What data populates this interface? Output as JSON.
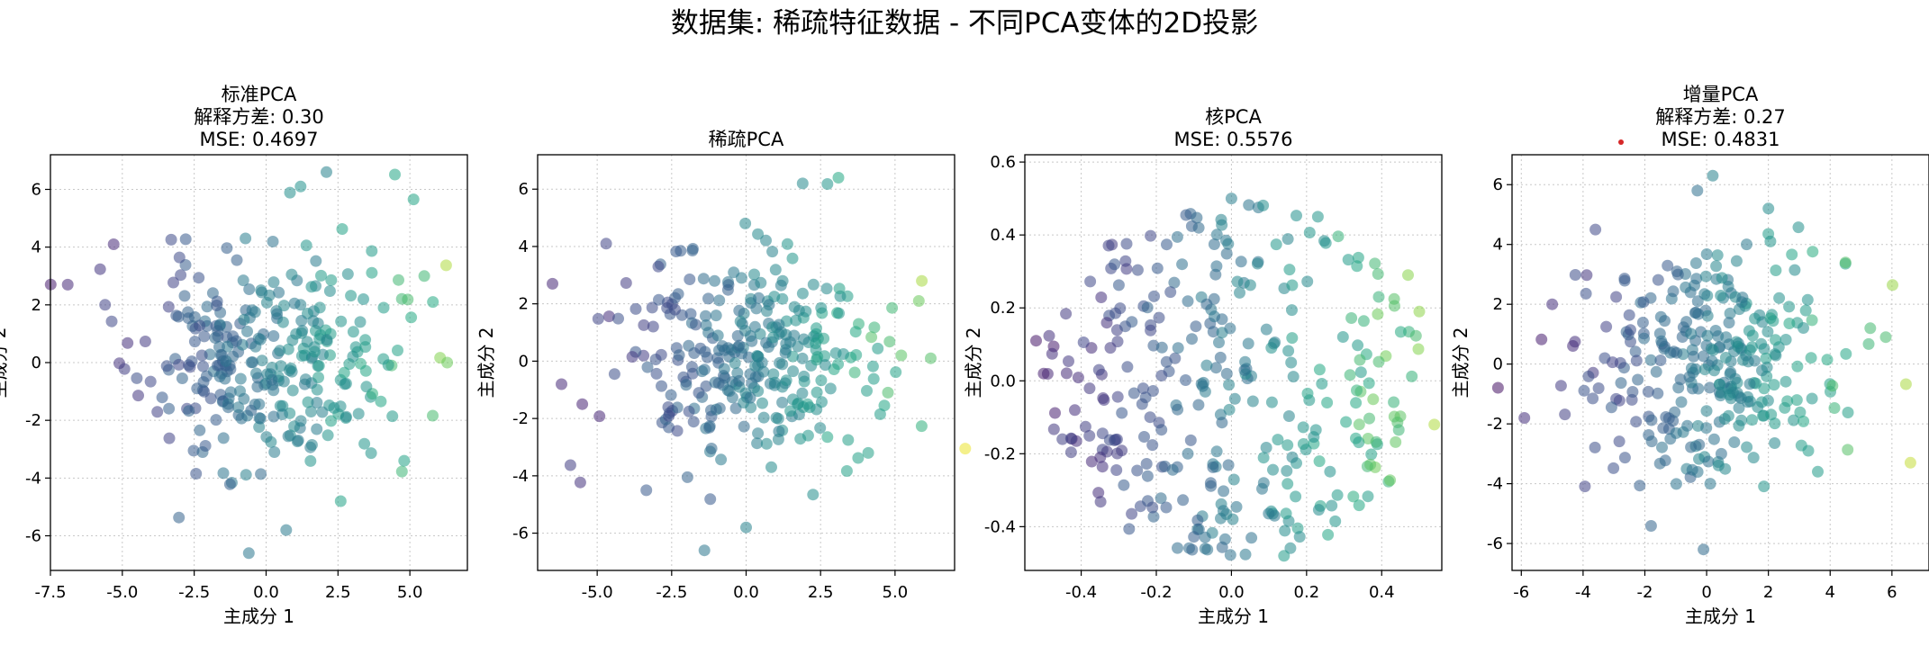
{
  "figure": {
    "suptitle": "数据集: 稀疏特征数据 - 不同PCA变体的2D投影"
  },
  "style": {
    "colormap": "viridis",
    "point_alpha": 0.55,
    "grid": true
  },
  "chart_data": [
    {
      "type": "scatter",
      "title_lines": [
        "标准PCA",
        "解释方差: 0.30",
        "MSE: 0.4697"
      ],
      "xlabel": "主成分 1",
      "ylabel": "主成分 2",
      "xlim": [
        -7.5,
        7.0
      ],
      "ylim": [
        -7.2,
        7.2
      ],
      "xticks": [
        -7.5,
        -5.0,
        -2.5,
        0.0,
        2.5,
        5.0
      ],
      "xtick_labels": [
        "-7.5",
        "-5.0",
        "-2.5",
        "0.0",
        "2.5",
        "5.0"
      ],
      "yticks": [
        -6,
        -4,
        -2,
        0,
        2,
        4,
        6
      ],
      "ytick_labels": [
        "-6",
        "-4",
        "-2",
        "0",
        "2",
        "4",
        "6"
      ],
      "n_points": 300,
      "seed": 11,
      "x_std": 2.4,
      "y_std": 2.3,
      "extremes": [
        [
          -6.9,
          2.7
        ],
        [
          -5.6,
          2.0
        ],
        [
          -5.3,
          4.1
        ],
        [
          6.3,
          0.0
        ],
        [
          5.5,
          3.0
        ],
        [
          5.8,
          2.1
        ],
        [
          -0.6,
          -6.6
        ],
        [
          2.1,
          6.6
        ],
        [
          1.2,
          6.1
        ],
        [
          0.7,
          -5.8
        ],
        [
          4.8,
          -3.4
        ]
      ]
    },
    {
      "type": "scatter",
      "title_lines": [
        "稀疏PCA"
      ],
      "xlabel": "",
      "ylabel": "主成分 2",
      "xlim": [
        -7.0,
        7.0
      ],
      "ylim": [
        -7.3,
        7.2
      ],
      "xticks": [
        -5.0,
        -2.5,
        0.0,
        2.5,
        5.0
      ],
      "xtick_labels": [
        "-5.0",
        "-2.5",
        "0.0",
        "2.5",
        "5.0"
      ],
      "yticks": [
        -6,
        -4,
        -2,
        0,
        2,
        4,
        6
      ],
      "ytick_labels": [
        "-6",
        "-4",
        "-2",
        "0",
        "2",
        "4",
        "6"
      ],
      "n_points": 300,
      "seed": 23,
      "x_std": 2.4,
      "y_std": 2.3,
      "extremes": [
        [
          -6.5,
          2.7
        ],
        [
          -4.7,
          4.1
        ],
        [
          -5.5,
          -1.5
        ],
        [
          6.2,
          0.1
        ],
        [
          5.9,
          2.8
        ],
        [
          5.8,
          2.1
        ],
        [
          -1.4,
          -6.6
        ],
        [
          3.1,
          6.4
        ],
        [
          1.9,
          6.2
        ],
        [
          0.0,
          -5.8
        ],
        [
          4.1,
          -3.2
        ]
      ]
    },
    {
      "type": "scatter",
      "title_lines": [
        "核PCA",
        "MSE: 0.5576"
      ],
      "xlabel": "主成分 1",
      "ylabel": "主成分 2",
      "xlim": [
        -0.55,
        0.56
      ],
      "ylim": [
        -0.52,
        0.62
      ],
      "xticks": [
        -0.4,
        -0.2,
        0.0,
        0.2,
        0.4
      ],
      "xtick_labels": [
        "-0.4",
        "-0.2",
        "0.0",
        "0.2",
        "0.4"
      ],
      "yticks": [
        -0.4,
        -0.2,
        0.0,
        0.2,
        0.4,
        0.6
      ],
      "ytick_labels": [
        "-0.4",
        "-0.2",
        "0.0",
        "0.2",
        "0.4",
        "0.6"
      ],
      "n_points": 320,
      "seed": 37,
      "uniform": true,
      "radius": 0.5,
      "extremes": [
        [
          -0.52,
          0.11
        ],
        [
          -0.5,
          0.02
        ],
        [
          -0.45,
          -0.16
        ],
        [
          0.54,
          -0.12
        ],
        [
          0.47,
          0.29
        ],
        [
          0.5,
          0.19
        ],
        [
          -0.07,
          -0.46
        ],
        [
          0.0,
          0.5
        ],
        [
          0.23,
          0.45
        ],
        [
          0.14,
          -0.48
        ]
      ]
    },
    {
      "type": "scatter",
      "title_lines": [
        "增量PCA",
        "解释方差: 0.27",
        "MSE: 0.4831"
      ],
      "xlabel": "主成分 1",
      "ylabel": "主成分 2",
      "xlim": [
        -6.3,
        7.2
      ],
      "ylim": [
        -6.9,
        7.0
      ],
      "xticks": [
        -6,
        -4,
        -2,
        0,
        2,
        4,
        6
      ],
      "xtick_labels": [
        "-6",
        "-4",
        "-2",
        "0",
        "2",
        "4",
        "6"
      ],
      "yticks": [
        -6,
        -4,
        -2,
        0,
        2,
        4,
        6
      ],
      "ytick_labels": [
        "-6",
        "-4",
        "-2",
        "0",
        "2",
        "4",
        "6"
      ],
      "n_points": 300,
      "seed": 53,
      "x_std": 2.2,
      "y_std": 2.3,
      "extremes": [
        [
          -5.9,
          -1.8
        ],
        [
          -5.0,
          2.0
        ],
        [
          -3.6,
          4.5
        ],
        [
          6.6,
          -3.3
        ],
        [
          5.3,
          1.2
        ],
        [
          5.8,
          0.9
        ],
        [
          -0.1,
          -6.2
        ],
        [
          -0.3,
          5.8
        ],
        [
          0.2,
          6.3
        ],
        [
          2.0,
          5.2
        ],
        [
          3.6,
          -3.6
        ]
      ]
    }
  ]
}
